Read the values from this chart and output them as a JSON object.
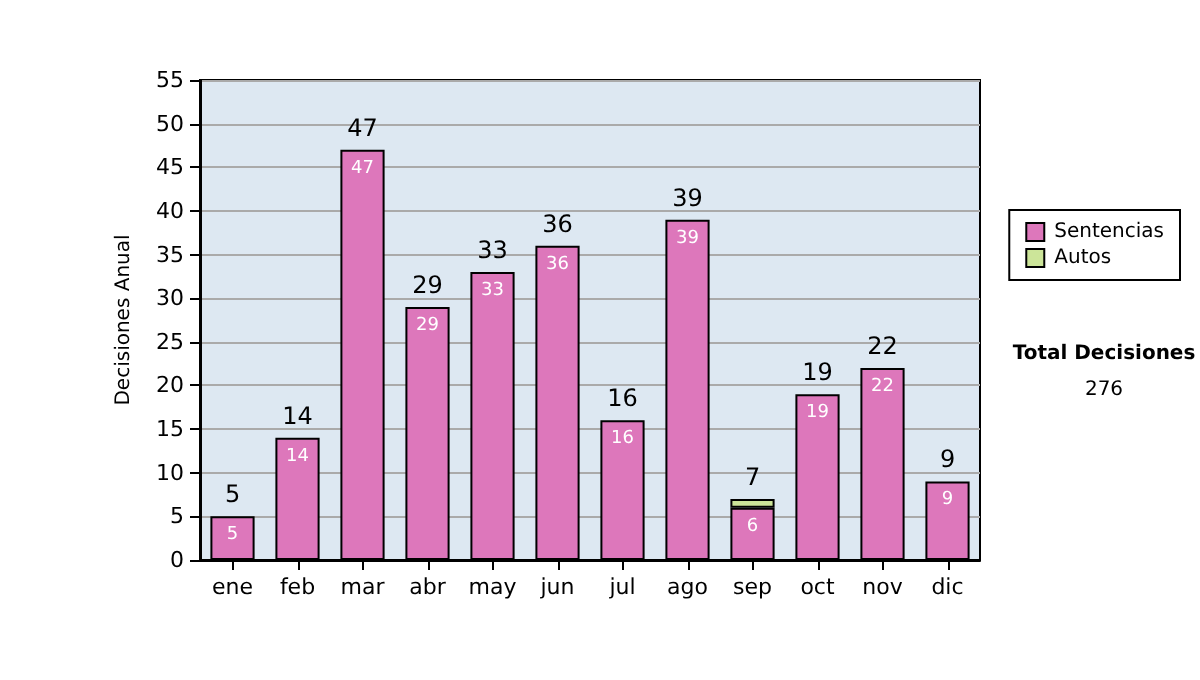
{
  "chart_data": {
    "type": "bar",
    "stacked": true,
    "ylabel": "Decisiones Anual",
    "categories": [
      "ene",
      "feb",
      "mar",
      "abr",
      "may",
      "jun",
      "jul",
      "ago",
      "sep",
      "oct",
      "nov",
      "dic"
    ],
    "series": [
      {
        "name": "Sentencias",
        "color": "#dd77bb",
        "values": [
          5,
          14,
          47,
          29,
          33,
          36,
          16,
          39,
          6,
          19,
          22,
          9
        ],
        "value_labels": [
          "5",
          "14",
          "47",
          "29",
          "33",
          "36",
          "16",
          "39",
          "6",
          "19",
          "22",
          "9"
        ]
      },
      {
        "name": "Autos",
        "color": "#cce599",
        "values": [
          0,
          0,
          0,
          0,
          0,
          0,
          0,
          0,
          1,
          0,
          0,
          0
        ],
        "value_labels": [
          null,
          null,
          null,
          null,
          null,
          null,
          null,
          null,
          null,
          null,
          null,
          null
        ]
      }
    ],
    "totals": [
      "5",
      "14",
      "47",
      "29",
      "33",
      "36",
      "16",
      "39",
      "7",
      "19",
      "22",
      "9"
    ],
    "ylim": [
      0,
      55
    ],
    "yticks": [
      0,
      5,
      10,
      15,
      20,
      25,
      30,
      35,
      40,
      45,
      50,
      55
    ],
    "grid": "y",
    "legend": "right",
    "annotations": [
      "Total Decisiones",
      "276"
    ]
  }
}
